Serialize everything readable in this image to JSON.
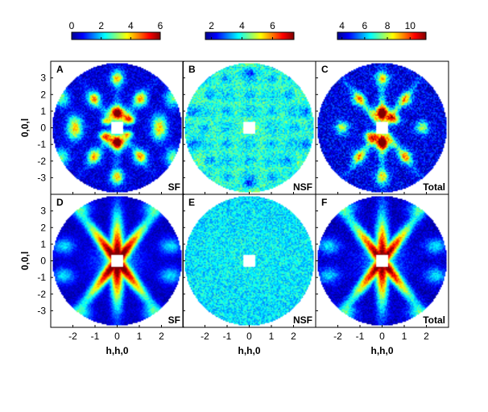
{
  "figure": {
    "colorbars": [
      {
        "ticks": [
          "0",
          "2",
          "4",
          "6"
        ],
        "range": [
          0,
          6
        ]
      },
      {
        "ticks": [
          "2",
          "4",
          "6"
        ],
        "range": [
          1.6,
          7.4
        ]
      },
      {
        "ticks": [
          "4",
          "6",
          "8",
          "10"
        ],
        "range": [
          3.6,
          11.4
        ]
      }
    ],
    "colormap": [
      "#00008f",
      "#0000ff",
      "#0080ff",
      "#00ffff",
      "#80ff80",
      "#ffff00",
      "#ff8000",
      "#ff0000",
      "#800000"
    ]
  },
  "chart_data": [
    {
      "type": "heatmap",
      "panel": "A",
      "tag": "SF",
      "xlabel": "",
      "ylabel": "0,0,l",
      "xlim": [
        -3,
        3
      ],
      "ylim": [
        -4,
        4
      ],
      "yticks": [
        "3",
        "2",
        "1",
        "0",
        "-1",
        "-2",
        "-3"
      ],
      "xticks": [],
      "pattern": "sf_polarized",
      "colorbar": 0
    },
    {
      "type": "heatmap",
      "panel": "B",
      "tag": "NSF",
      "xlabel": "",
      "ylabel": "",
      "xlim": [
        -3,
        3
      ],
      "ylim": [
        -4,
        4
      ],
      "yticks": [],
      "xticks": [],
      "pattern": "nsf_polarized",
      "colorbar": 1
    },
    {
      "type": "heatmap",
      "panel": "C",
      "tag": "Total",
      "xlabel": "",
      "ylabel": "",
      "xlim": [
        -3,
        3
      ],
      "ylim": [
        -4,
        4
      ],
      "yticks": [],
      "xticks": [],
      "pattern": "total_polarized",
      "colorbar": 2
    },
    {
      "type": "heatmap",
      "panel": "D",
      "tag": "SF",
      "xlabel": "h,h,0",
      "ylabel": "0,0,l",
      "xlim": [
        -3,
        3
      ],
      "ylim": [
        -4,
        4
      ],
      "yticks": [
        "3",
        "2",
        "1",
        "0",
        "-1",
        "-2",
        "-3"
      ],
      "xticks": [
        "-2",
        "-1",
        "0",
        "1",
        "2"
      ],
      "pattern": "sf_model",
      "colorbar": 0
    },
    {
      "type": "heatmap",
      "panel": "E",
      "tag": "NSF",
      "xlabel": "h,h,0",
      "ylabel": "",
      "xlim": [
        -3,
        3
      ],
      "ylim": [
        -4,
        4
      ],
      "yticks": [],
      "xticks": [
        "-2",
        "-1",
        "0",
        "1",
        "2"
      ],
      "pattern": "nsf_model",
      "colorbar": 1
    },
    {
      "type": "heatmap",
      "panel": "F",
      "tag": "Total",
      "xlabel": "h,h,0",
      "ylabel": "",
      "xlim": [
        -3,
        3
      ],
      "ylim": [
        -4,
        4
      ],
      "yticks": [],
      "xticks": [
        "-2",
        "-1",
        "0",
        "1",
        "2"
      ],
      "pattern": "total_model",
      "colorbar": 2
    }
  ]
}
